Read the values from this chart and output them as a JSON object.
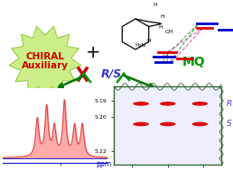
{
  "bg_color": "#ffffff",
  "chiral_star_color": "#ccee88",
  "chiral_star_edge": "#99cc44",
  "chiral_text_line1": "CHIRAL",
  "chiral_text_line2": "Auxiliary",
  "chiral_text_color": "#cc0000",
  "plus_color": "#000000",
  "rs_text": "R/S",
  "rs_color": "#3333cc",
  "mq_text": "MQ",
  "mq_color": "#009900",
  "arrow_green_color": "#007700",
  "line_red_color": "#dd0000",
  "line_blue_color": "#0000cc",
  "line_pink_color": "#dd66bb",
  "green_dashed_color": "#44aa44",
  "r_label": "R",
  "s_label": "S",
  "label_color": "#6633cc",
  "ppm_label": "ppm",
  "spot_color": "#dd1111",
  "box_edge_color": "#336633",
  "wiggly_color": "#336633",
  "axis_color": "#0000cc",
  "spectrum_color": "#dd4444",
  "spectrum_fill": "#ffaaaa",
  "cross_color": "#cc0000",
  "green_v_color": "#009900"
}
